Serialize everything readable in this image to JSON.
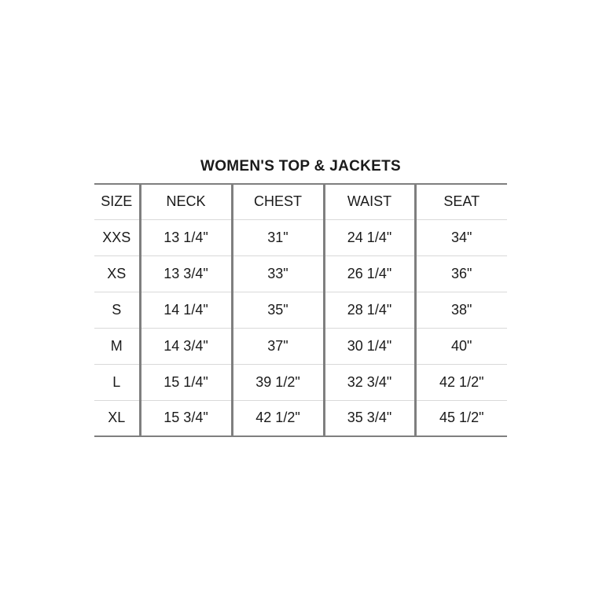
{
  "chart_data": {
    "type": "table",
    "title": "WOMEN'S TOP & JACKETS",
    "columns": [
      "SIZE",
      "NECK",
      "CHEST",
      "WAIST",
      "SEAT"
    ],
    "rows": [
      [
        "XXS",
        "13 1/4\"",
        "31\"",
        "24 1/4\"",
        "34\""
      ],
      [
        "XS",
        "13 3/4\"",
        "33\"",
        "26 1/4\"",
        "36\""
      ],
      [
        "S",
        "14 1/4\"",
        "35\"",
        "28 1/4\"",
        "38\""
      ],
      [
        "M",
        "14 3/4\"",
        "37\"",
        "30 1/4\"",
        "40\""
      ],
      [
        "L",
        "15 1/4\"",
        "39 1/2\"",
        "32 3/4\"",
        "42 1/2\""
      ],
      [
        "XL",
        "15 3/4\"",
        "42 1/2\"",
        "35 3/4\"",
        "45 1/2\""
      ]
    ],
    "layout": {
      "grid": "on",
      "column_divider_color": "#7f7f7f",
      "row_divider_color": "#d9d9d9",
      "outer_rule_color": "#7f7f7f",
      "text_color": "#1a1a1a",
      "background": "#ffffff"
    }
  }
}
